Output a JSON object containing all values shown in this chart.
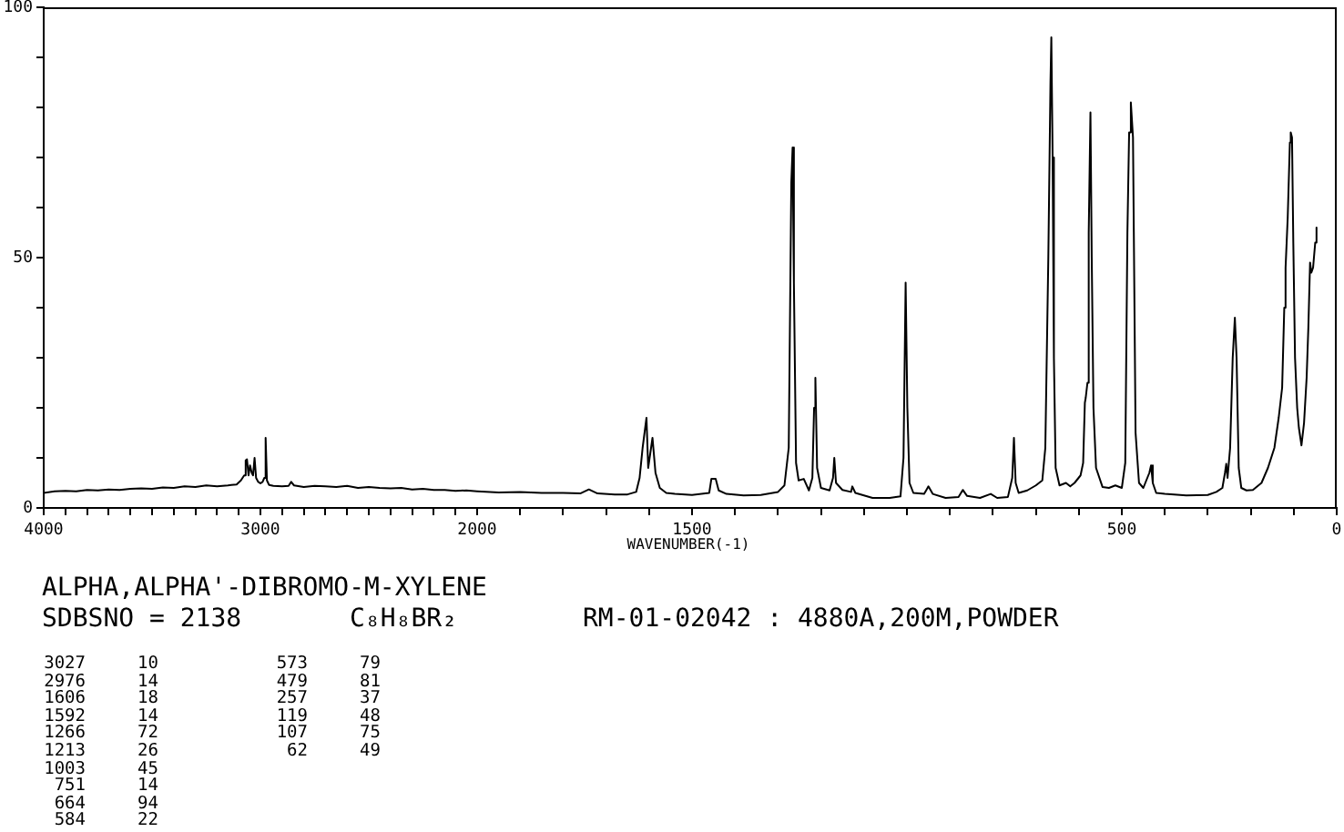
{
  "chart_data": [
    {
      "type": "line",
      "x": [
        4000,
        3950,
        3900,
        3850,
        3800,
        3750,
        3700,
        3650,
        3600,
        3550,
        3500,
        3450,
        3400,
        3350,
        3300,
        3250,
        3200,
        3150,
        3110,
        3090,
        3075,
        3068,
        3062,
        3055,
        3048,
        3040,
        3034,
        3027,
        3020,
        3010,
        3000,
        2990,
        2982,
        2976,
        2970,
        2960,
        2940,
        2900,
        2870,
        2858,
        2845,
        2800,
        2750,
        2700,
        2650,
        2600,
        2550,
        2500,
        2450,
        2400,
        2350,
        2300,
        2250,
        2200,
        2150,
        2100,
        2050,
        2000
      ],
      "series": [
        {
          "color": "#000000",
          "values": [
            3.0,
            3.3,
            3.4,
            3.3,
            3.6,
            3.5,
            3.7,
            3.6,
            3.8,
            3.9,
            3.8,
            4.1,
            4.0,
            4.3,
            4.2,
            4.5,
            4.3,
            4.5,
            4.7,
            5.5,
            6.5,
            9.5,
            9.7,
            6.5,
            8.5,
            7.0,
            6.5,
            10,
            6.0,
            5.2,
            4.9,
            5.2,
            6.0,
            14,
            5.5,
            4.6,
            4.4,
            4.3,
            4.4,
            5.2,
            4.5,
            4.2,
            4.4,
            4.3,
            4.2,
            4.4,
            4.0,
            4.2,
            4.0,
            3.9,
            4.0,
            3.7,
            3.8,
            3.6,
            3.6,
            3.4,
            3.5,
            3.3
          ]
        }
      ],
      "xlim": [
        4000,
        2000
      ],
      "xticks": [
        4000,
        {
          "value": 3900,
          "label": null
        },
        {
          "value": 3800,
          "label": null
        },
        {
          "value": 3700,
          "label": null
        },
        {
          "value": 3600,
          "label": null
        },
        {
          "value": 3500,
          "label": null
        },
        {
          "value": 3400,
          "label": null
        },
        {
          "value": 3300,
          "label": null
        },
        {
          "value": 3200,
          "label": null
        },
        {
          "value": 3100,
          "label": null
        },
        3000,
        {
          "value": 2900,
          "label": null
        },
        {
          "value": 2800,
          "label": null
        },
        {
          "value": 2700,
          "label": null
        },
        {
          "value": 2600,
          "label": null
        },
        {
          "value": 2500,
          "label": null
        },
        {
          "value": 2400,
          "label": null
        },
        {
          "value": 2300,
          "label": null
        },
        {
          "value": 2200,
          "label": null
        },
        {
          "value": 2100,
          "label": null
        },
        2000
      ],
      "ylim": [
        0,
        100
      ],
      "yticks": [
        0,
        {
          "value": 10,
          "label": null
        },
        {
          "value": 20,
          "label": null
        },
        {
          "value": 30,
          "label": null
        },
        {
          "value": 40,
          "label": null
        },
        50,
        {
          "value": 60,
          "label": null
        },
        {
          "value": 70,
          "label": null
        },
        {
          "value": 80,
          "label": null
        },
        {
          "value": 90,
          "label": null
        },
        100
      ]
    },
    {
      "type": "line",
      "xlabel": "WAVENUMBER(-1)",
      "x": [
        2000,
        1950,
        1900,
        1850,
        1800,
        1760,
        1740,
        1720,
        1680,
        1650,
        1630,
        1622,
        1615,
        1606,
        1602,
        1592,
        1585,
        1575,
        1560,
        1540,
        1500,
        1460,
        1455,
        1445,
        1438,
        1420,
        1380,
        1340,
        1300,
        1285,
        1275,
        1269,
        1266,
        1263,
        1258,
        1252,
        1240,
        1228,
        1220,
        1216,
        1213,
        1209,
        1200,
        1180,
        1172,
        1169,
        1165,
        1150,
        1130,
        1127,
        1120,
        1080,
        1040,
        1015,
        1008,
        1003,
        999,
        994,
        985,
        960,
        950,
        940,
        910,
        880,
        870,
        860,
        830,
        805,
        790,
        765,
        755,
        751,
        747,
        740,
        720,
        700,
        685,
        678,
        671,
        666,
        664,
        661,
        658,
        654,
        645,
        630,
        620,
        610,
        596,
        590,
        586,
        584,
        580,
        577,
        573,
        570,
        566,
        560,
        545,
        530,
        515,
        500,
        492,
        487,
        483,
        479,
        474,
        468,
        460,
        450,
        436,
        432,
        428,
        420,
        400,
        350,
        300,
        280,
        266,
        260,
        257,
        254,
        248,
        242,
        237,
        233,
        228,
        222,
        210,
        195,
        175,
        160,
        145,
        135,
        127,
        122,
        119,
        114,
        109,
        107,
        104,
        101,
        97,
        92,
        88,
        82,
        76,
        70,
        66,
        62,
        59,
        55,
        50,
        47
      ],
      "series": [
        {
          "color": "#000000",
          "values": [
            3.3,
            3.1,
            3.2,
            3.0,
            3.0,
            2.9,
            3.7,
            2.9,
            2.7,
            2.7,
            3.2,
            6,
            12,
            18,
            8,
            14,
            7,
            4,
            3,
            2.8,
            2.6,
            3,
            5.8,
            5.8,
            3.5,
            2.8,
            2.5,
            2.6,
            3.2,
            4.5,
            12,
            65,
            72,
            45,
            9,
            5.5,
            5.8,
            3.5,
            6,
            20,
            26,
            8,
            4,
            3.5,
            6,
            10,
            5,
            3.6,
            3.2,
            4.3,
            3,
            2,
            2,
            2.3,
            10,
            45,
            20,
            5,
            3,
            2.8,
            4.3,
            2.8,
            2,
            2.2,
            3.6,
            2.4,
            2,
            2.8,
            2,
            2.2,
            6,
            14,
            5,
            3,
            3.5,
            4.5,
            5.5,
            12,
            50,
            85,
            94,
            70,
            30,
            8,
            4.5,
            5,
            4.3,
            5,
            6.5,
            9,
            21,
            22,
            25,
            55,
            79,
            50,
            20,
            8,
            4.2,
            4,
            4.5,
            4,
            9,
            55,
            75,
            81,
            74,
            15,
            5,
            4,
            7,
            8.5,
            5,
            3,
            2.8,
            2.5,
            2.6,
            3.2,
            4,
            7,
            8.8,
            6,
            12,
            30,
            38,
            30,
            8,
            4,
            3.5,
            3.6,
            5,
            8,
            12,
            18,
            24,
            40,
            48,
            58,
            73,
            75,
            74,
            53,
            30,
            20,
            16,
            12.5,
            17,
            26,
            36,
            49,
            47,
            48,
            53,
            56
          ]
        }
      ],
      "xlim": [
        2000,
        0
      ],
      "xticks": [
        {
          "value": 1900,
          "label": null
        },
        {
          "value": 1800,
          "label": null
        },
        {
          "value": 1700,
          "label": null
        },
        {
          "value": 1600,
          "label": null
        },
        1500,
        {
          "value": 1400,
          "label": null
        },
        {
          "value": 1300,
          "label": null
        },
        {
          "value": 1200,
          "label": null
        },
        {
          "value": 1100,
          "label": null
        },
        {
          "value": 1000,
          "label": null
        },
        {
          "value": 900,
          "label": null
        },
        {
          "value": 800,
          "label": null
        },
        {
          "value": 700,
          "label": null
        },
        {
          "value": 600,
          "label": null
        },
        500,
        {
          "value": 400,
          "label": null
        },
        {
          "value": 300,
          "label": null
        },
        {
          "value": 200,
          "label": null
        },
        {
          "value": 100,
          "label": null
        },
        0
      ],
      "ylim": [
        0,
        100
      ],
      "tick_labels": "x"
    },
    {
      "type": "other",
      "title": "ALPHA,ALPHA'-DIBROMO-M-XYLENE",
      "annotations": [
        "SDBSNO = 2138",
        "C₈H₈BR₂",
        "RM-01-02042 : 4880A,200M,POWDER",
        "3027 10",
        "2976 14",
        "1606 18",
        "1592 14",
        "1266 72",
        "1213 26",
        "1003 45",
        "751 14",
        "664 94",
        "584 22",
        "573 79",
        "479 81",
        "257 37",
        "119 48",
        "107 75",
        "62 49"
      ]
    }
  ]
}
